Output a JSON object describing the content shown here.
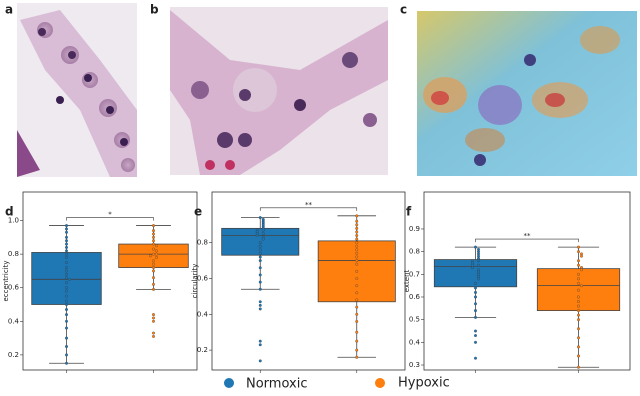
{
  "panel_labels": [
    "a",
    "b",
    "c"
  ],
  "chart_data": [
    {
      "type": "box",
      "label": "d",
      "ylabel": "eccentricity",
      "annotation": "*",
      "ylim": [
        0.11,
        1.17
      ],
      "yticks": [
        0.2,
        0.4,
        0.6,
        0.8,
        {
          "value": 1,
          "label": "1.0"
        }
      ],
      "series": [
        {
          "name": "Normoxic",
          "color": "#1f77b4",
          "box": {
            "whislo": 0.15,
            "q1": 0.5,
            "med": 0.65,
            "q3": 0.81,
            "whishi": 0.97
          },
          "points": [
            0.97,
            0.95,
            0.93,
            0.9,
            0.88,
            0.86,
            0.84,
            0.82,
            0.8,
            0.78,
            0.75,
            0.72,
            0.7,
            0.68,
            0.66,
            0.65,
            0.63,
            0.6,
            0.58,
            0.55,
            0.52,
            0.5,
            0.47,
            0.44,
            0.4,
            0.36,
            0.3,
            0.25,
            0.2,
            0.15
          ]
        },
        {
          "name": "Hypoxic",
          "color": "#ff7f0e",
          "box": {
            "whislo": 0.59,
            "q1": 0.72,
            "med": 0.8,
            "q3": 0.86,
            "whishi": 0.97
          },
          "points": [
            0.97,
            0.94,
            0.92,
            0.9,
            0.88,
            0.86,
            0.85,
            0.83,
            0.82,
            0.8,
            0.8,
            0.79,
            0.78,
            0.76,
            0.74,
            0.72,
            0.7,
            0.66,
            0.62,
            0.59,
            0.44,
            0.42,
            0.4,
            0.33,
            0.31
          ]
        }
      ]
    },
    {
      "type": "box",
      "label": "e",
      "ylabel": "circularity",
      "annotation": "**",
      "ylim": [
        0.089,
        1.083
      ],
      "yticks": [
        0.2,
        0.4,
        0.6,
        0.8
      ],
      "series": [
        {
          "name": "Normoxic",
          "color": "#1f77b4",
          "box": {
            "whislo": 0.54,
            "q1": 0.73,
            "med": 0.84,
            "q3": 0.88,
            "whishi": 0.94
          },
          "points": [
            0.94,
            0.93,
            0.92,
            0.91,
            0.9,
            0.89,
            0.88,
            0.87,
            0.87,
            0.86,
            0.85,
            0.85,
            0.84,
            0.83,
            0.82,
            0.8,
            0.78,
            0.76,
            0.74,
            0.72,
            0.7,
            0.66,
            0.62,
            0.58,
            0.54,
            0.47,
            0.45,
            0.43,
            0.25,
            0.23,
            0.14
          ]
        },
        {
          "name": "Hypoxic",
          "color": "#ff7f0e",
          "box": {
            "whislo": 0.16,
            "q1": 0.47,
            "med": 0.7,
            "q3": 0.81,
            "whishi": 0.95
          },
          "points": [
            0.95,
            0.92,
            0.9,
            0.88,
            0.86,
            0.84,
            0.82,
            0.8,
            0.78,
            0.76,
            0.74,
            0.72,
            0.7,
            0.68,
            0.64,
            0.6,
            0.56,
            0.52,
            0.48,
            0.44,
            0.4,
            0.36,
            0.3,
            0.25,
            0.2,
            0.16
          ]
        }
      ]
    },
    {
      "type": "box",
      "label": "f",
      "ylabel": "extent",
      "annotation": "**",
      "ylim": [
        0.278,
        1.063
      ],
      "yticks": [
        0.3,
        0.4,
        0.5,
        0.6,
        0.7,
        0.8,
        0.9
      ],
      "series": [
        {
          "name": "Normoxic",
          "color": "#1f77b4",
          "box": {
            "whislo": 0.51,
            "q1": 0.645,
            "med": 0.735,
            "q3": 0.765,
            "whishi": 0.82
          },
          "points": [
            0.82,
            0.81,
            0.8,
            0.79,
            0.78,
            0.77,
            0.76,
            0.76,
            0.75,
            0.74,
            0.74,
            0.73,
            0.72,
            0.71,
            0.7,
            0.69,
            0.68,
            0.66,
            0.64,
            0.62,
            0.6,
            0.57,
            0.54,
            0.51,
            0.45,
            0.43,
            0.4,
            0.33
          ]
        },
        {
          "name": "Hypoxic",
          "color": "#ff7f0e",
          "box": {
            "whislo": 0.29,
            "q1": 0.54,
            "med": 0.65,
            "q3": 0.725,
            "whishi": 0.82
          },
          "points": [
            0.82,
            0.8,
            0.79,
            0.78,
            0.76,
            0.74,
            0.73,
            0.72,
            0.7,
            0.68,
            0.66,
            0.65,
            0.63,
            0.6,
            0.58,
            0.56,
            0.54,
            0.52,
            0.5,
            0.46,
            0.42,
            0.38,
            0.34,
            0.29
          ]
        }
      ]
    }
  ]
}
